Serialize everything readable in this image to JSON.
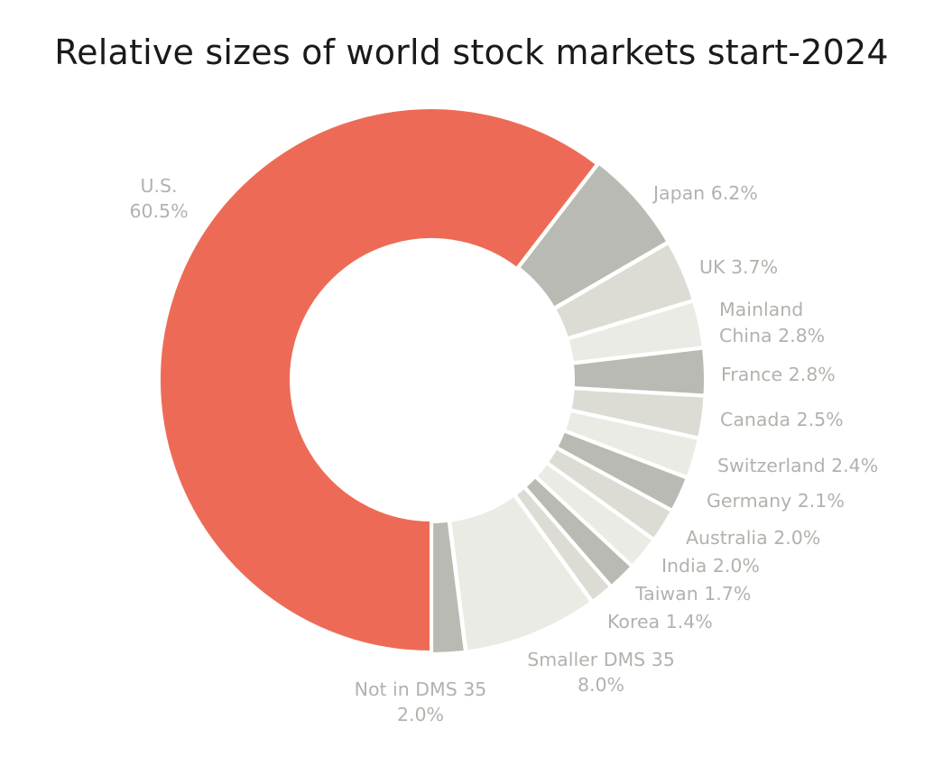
{
  "chart_data": {
    "type": "pie",
    "title": "Relative sizes of world stock markets start-2024",
    "categories": [
      "U.S.",
      "Japan",
      "UK",
      "Mainland China",
      "France",
      "Canada",
      "Switzerland",
      "Germany",
      "Australia",
      "India",
      "Taiwan",
      "Korea",
      "Smaller DMS 35",
      "Not in DMS 35"
    ],
    "values": [
      60.5,
      6.2,
      3.7,
      2.8,
      2.8,
      2.5,
      2.4,
      2.1,
      2.0,
      2.0,
      1.7,
      1.4,
      8.0,
      2.0
    ],
    "value_labels": [
      "60.5%",
      "6.2%",
      "3.7%",
      "2.8%",
      "2.8%",
      "2.5%",
      "2.4%",
      "2.1%",
      "2.0%",
      "2.0%",
      "1.7%",
      "1.4%",
      "8.0%",
      "2.0%"
    ],
    "colors": [
      "#ed6b56",
      "#babab4",
      "#dcdcd5",
      "#ebebe6",
      "#babab4",
      "#dcdcd5",
      "#ebebe6",
      "#babab4",
      "#dcdcd5",
      "#ebebe6",
      "#babab4",
      "#dcdcd5",
      "#ebebe6",
      "#babab4"
    ],
    "label_color": "#b2b2ad",
    "donut": true,
    "start": "12 o'clock",
    "direction": "counter-clockwise from U.S. top-right edge"
  }
}
